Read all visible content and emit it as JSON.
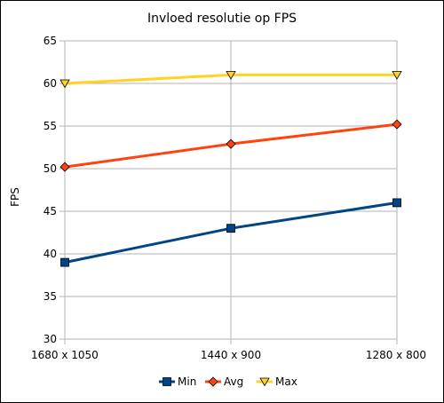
{
  "chart_data": {
    "type": "line",
    "title": "Invloed resolutie op FPS",
    "xlabel": "",
    "ylabel": "FPS",
    "categories": [
      "1680 x 1050",
      "1440  x 900",
      "1280  x 800"
    ],
    "ylim": [
      30,
      65
    ],
    "yticks": [
      30,
      35,
      40,
      45,
      50,
      55,
      60,
      65
    ],
    "grid": true,
    "legend": "bottom",
    "series": [
      {
        "name": "Min",
        "values": [
          39,
          43,
          46
        ],
        "color": "#004586",
        "marker": "square"
      },
      {
        "name": "Avg",
        "values": [
          50.2,
          52.9,
          55.2
        ],
        "color": "#ff420e",
        "marker": "diamond"
      },
      {
        "name": "Max",
        "values": [
          60,
          61,
          61
        ],
        "color": "#ffd320",
        "marker": "triangle-down"
      }
    ]
  }
}
